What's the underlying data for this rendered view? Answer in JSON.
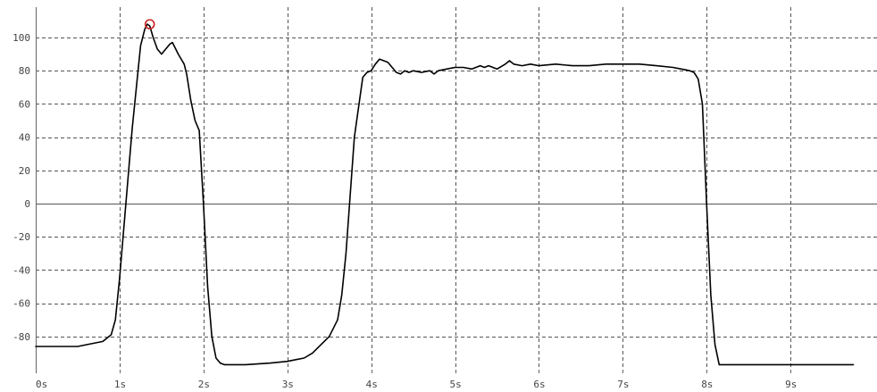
{
  "chart_data": {
    "type": "line",
    "title": "",
    "xlabel": "",
    "ylabel": "",
    "xlim": [
      0,
      10.3
    ],
    "ylim": [
      -100,
      120
    ],
    "grid": true,
    "x_ticks": [
      0,
      1,
      2,
      3,
      4,
      5,
      6,
      7,
      8,
      9
    ],
    "x_tick_labels": [
      "0s",
      "1s",
      "2s",
      "3s",
      "4s",
      "5s",
      "6s",
      "7s",
      "8s",
      "9s"
    ],
    "y_ticks": [
      100,
      80,
      60,
      40,
      20,
      0,
      -20,
      -40,
      -60,
      -80
    ],
    "y_tick_labels": [
      "100",
      "80",
      "60",
      "40",
      "20",
      "0",
      "-20",
      "-40",
      "-60",
      "-80"
    ],
    "marker": {
      "x": 1.36,
      "y": 108,
      "color": "#cc2222"
    },
    "series": [
      {
        "color": "#000000",
        "x": [
          0.0,
          0.2,
          0.5,
          0.6,
          0.8,
          0.9,
          0.95,
          1.0,
          1.05,
          1.1,
          1.15,
          1.2,
          1.25,
          1.3,
          1.33,
          1.36,
          1.4,
          1.45,
          1.5,
          1.55,
          1.6,
          1.63,
          1.7,
          1.77,
          1.8,
          1.85,
          1.9,
          1.95,
          2.0,
          2.05,
          2.1,
          2.15,
          2.2,
          2.25,
          2.3,
          2.5,
          2.8,
          3.0,
          3.1,
          3.2,
          3.3,
          3.4,
          3.5,
          3.6,
          3.65,
          3.7,
          3.75,
          3.8,
          3.85,
          3.9,
          3.95,
          4.0,
          4.05,
          4.1,
          4.15,
          4.2,
          4.25,
          4.3,
          4.35,
          4.4,
          4.45,
          4.5,
          4.6,
          4.7,
          4.75,
          4.8,
          4.9,
          5.0,
          5.1,
          5.2,
          5.3,
          5.35,
          5.4,
          5.5,
          5.6,
          5.65,
          5.7,
          5.8,
          5.9,
          6.0,
          6.2,
          6.4,
          6.6,
          6.8,
          7.0,
          7.2,
          7.4,
          7.6,
          7.7,
          7.8,
          7.85,
          7.9,
          7.95,
          8.0,
          8.05,
          8.1,
          8.15,
          8.2,
          8.5,
          9.0,
          9.5,
          9.75
        ],
        "y": [
          -86,
          -86,
          -86,
          -85,
          -83,
          -79,
          -70,
          -45,
          -15,
          15,
          45,
          70,
          95,
          105,
          108,
          107,
          100,
          93,
          90,
          93,
          96,
          97,
          90,
          84,
          78,
          62,
          50,
          44,
          0,
          -50,
          -80,
          -93,
          -96,
          -97,
          -97,
          -97,
          -96,
          -95,
          -94,
          -93,
          -90,
          -85,
          -80,
          -70,
          -55,
          -30,
          5,
          40,
          58,
          76,
          79,
          80,
          84,
          87,
          86,
          85,
          82,
          79,
          78,
          80,
          79,
          80,
          79,
          80,
          78,
          80,
          81,
          82,
          82,
          81,
          83,
          82,
          83,
          81,
          84,
          86,
          84,
          83,
          84,
          83,
          84,
          83,
          83,
          84,
          84,
          84,
          83,
          82,
          81,
          80,
          79,
          75,
          60,
          0,
          -55,
          -85,
          -97,
          -97,
          -97,
          -97,
          -97,
          -97
        ]
      }
    ]
  }
}
